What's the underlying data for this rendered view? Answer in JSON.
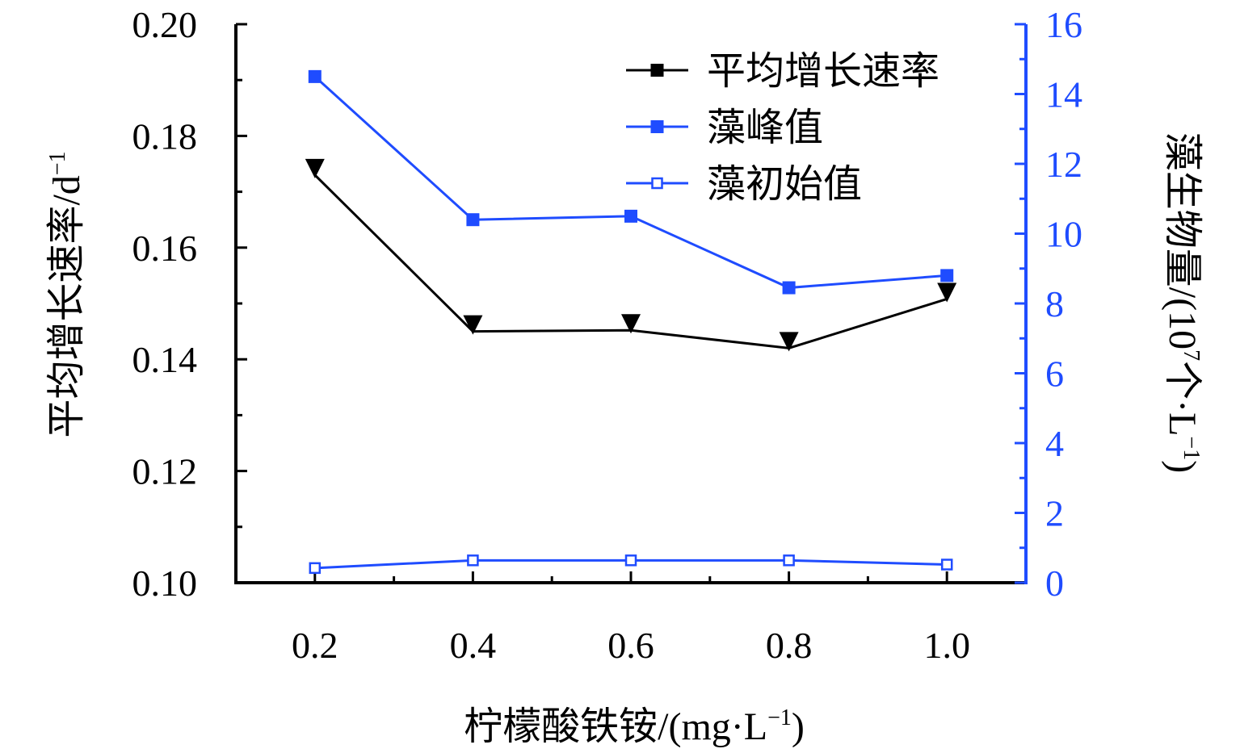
{
  "chart_data": {
    "type": "line",
    "x_axis": {
      "label": "柠檬酸铁铵/(mg·L",
      "label_sup": "−1",
      "label_close": ")",
      "ticks": [
        "0.2",
        "0.4",
        "0.6",
        "0.8",
        "1.0"
      ],
      "x": [
        0.2,
        0.4,
        0.6,
        0.8,
        1.0
      ],
      "range": [
        0.1,
        1.1
      ]
    },
    "y_left": {
      "label": "平均增长速率/d",
      "label_sup": "−1",
      "range": [
        0.1,
        0.2
      ],
      "ticks": [
        "0.10",
        "0.12",
        "0.14",
        "0.16",
        "0.18",
        "0.20"
      ],
      "tick_values": [
        0.1,
        0.12,
        0.14,
        0.16,
        0.18,
        0.2
      ],
      "color": "#000000"
    },
    "y_right": {
      "label_pre": "藻生物量/(10",
      "label_sup": "7",
      "label_post": "个·L",
      "label_sup2": "−1",
      "label_close": ")",
      "range": [
        0,
        16
      ],
      "ticks": [
        "0",
        "2",
        "4",
        "6",
        "8",
        "10",
        "12",
        "14",
        "16"
      ],
      "tick_values": [
        0,
        2,
        4,
        6,
        8,
        10,
        12,
        14,
        16
      ],
      "color": "#1f4cff"
    },
    "series": [
      {
        "name": "平均增长速率",
        "axis": "left",
        "color": "#000000",
        "marker": "triangle-down",
        "legend_marker": "square-filled",
        "values": [
          0.173,
          0.145,
          0.1452,
          0.142,
          0.1508
        ]
      },
      {
        "name": "藻峰值",
        "axis": "right",
        "color": "#1f4cff",
        "marker": "square-filled",
        "values": [
          14.5,
          10.4,
          10.5,
          8.45,
          8.8
        ]
      },
      {
        "name": "藻初始值",
        "axis": "right",
        "color": "#1f4cff",
        "marker": "square-open",
        "values": [
          0.42,
          0.64,
          0.64,
          0.64,
          0.52
        ]
      }
    ],
    "legend_position": "top-right"
  }
}
